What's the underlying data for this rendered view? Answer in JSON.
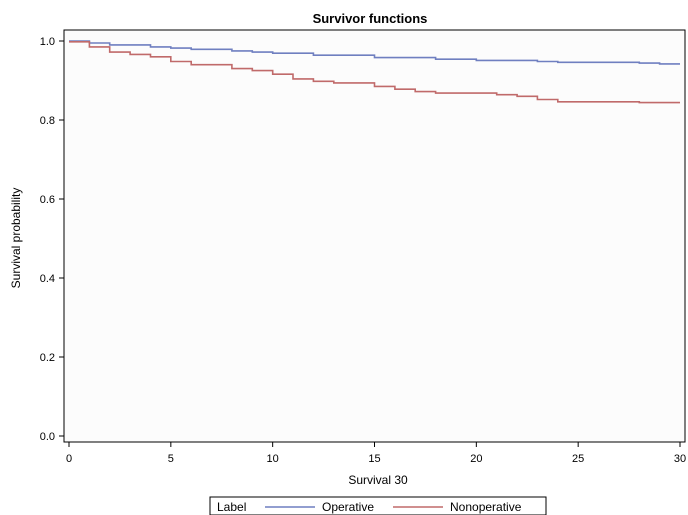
{
  "chart_data": {
    "type": "line",
    "step": true,
    "title": "Survivor functions",
    "xlabel": "Survival 30",
    "ylabel": "Survival probability",
    "xlim": [
      0,
      30
    ],
    "ylim": [
      0,
      1
    ],
    "x_ticks": [
      "0",
      "5",
      "10",
      "15",
      "20",
      "25",
      "30"
    ],
    "y_ticks": [
      "0.0",
      "0.2",
      "0.4",
      "0.6",
      "0.8",
      "1.0"
    ],
    "grid": false,
    "legend": {
      "title": "Label",
      "position": "bottom"
    },
    "series": [
      {
        "name": "Operative",
        "color": "#6f7fc0",
        "points": [
          [
            0,
            1.0
          ],
          [
            1,
            0.995
          ],
          [
            2,
            0.99
          ],
          [
            4,
            0.985
          ],
          [
            5,
            0.982
          ],
          [
            6,
            0.979
          ],
          [
            8,
            0.975
          ],
          [
            9,
            0.972
          ],
          [
            10,
            0.969
          ],
          [
            12,
            0.964
          ],
          [
            15,
            0.958
          ],
          [
            18,
            0.954
          ],
          [
            20,
            0.951
          ],
          [
            23,
            0.948
          ],
          [
            24,
            0.946
          ],
          [
            28,
            0.944
          ],
          [
            29,
            0.942
          ],
          [
            30,
            0.942
          ]
        ]
      },
      {
        "name": "Nonoperative",
        "color": "#c06a6a",
        "points": [
          [
            0,
            0.998
          ],
          [
            1,
            0.985
          ],
          [
            2,
            0.972
          ],
          [
            3,
            0.966
          ],
          [
            4,
            0.96
          ],
          [
            5,
            0.948
          ],
          [
            6,
            0.94
          ],
          [
            8,
            0.93
          ],
          [
            9,
            0.925
          ],
          [
            10,
            0.916
          ],
          [
            11,
            0.904
          ],
          [
            12,
            0.898
          ],
          [
            13,
            0.894
          ],
          [
            15,
            0.885
          ],
          [
            16,
            0.878
          ],
          [
            17,
            0.872
          ],
          [
            18,
            0.868
          ],
          [
            21,
            0.864
          ],
          [
            22,
            0.86
          ],
          [
            23,
            0.852
          ],
          [
            24,
            0.846
          ],
          [
            28,
            0.844
          ],
          [
            30,
            0.844
          ]
        ]
      }
    ]
  }
}
